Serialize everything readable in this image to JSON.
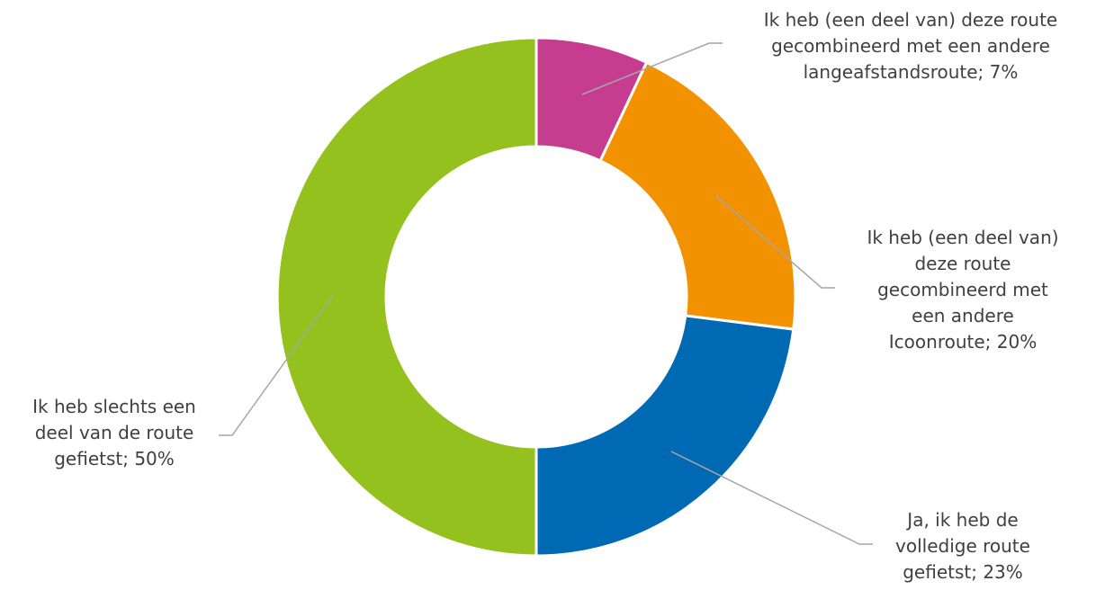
{
  "chart_data": {
    "type": "pie",
    "subtype": "doughnut",
    "title": "",
    "series": [
      {
        "values": [
          7,
          20,
          23,
          50
        ],
        "labels": [
          "Ik heb (een deel van) deze route gecombineerd met een andere langeafstandsroute; 7%",
          "Ik heb (een deel van) deze route gecombineerd met een andere Icoonroute; 20%",
          "Ja, ik heb de volledige route gefietst; 23%",
          "Ik heb slechts een deel van de route gefietst; 50%"
        ]
      }
    ],
    "colors": [
      "#c63d8f",
      "#f39200",
      "#0069b4",
      "#95c11f"
    ],
    "legend": "none",
    "label_lines": [
      [
        "Ik heb (een deel van) deze route",
        "gecombineerd met een andere",
        "langeafstandsroute; 7%"
      ],
      [
        "Ik heb (een deel van)",
        "deze route",
        "gecombineerd met",
        "een andere",
        "Icoonroute; 20%"
      ],
      [
        "Ja, ik heb de",
        "volledige route",
        "gefietst; 23%"
      ],
      [
        "Ik heb slechts een",
        "deel van de route",
        "gefietst; 50%"
      ]
    ]
  }
}
